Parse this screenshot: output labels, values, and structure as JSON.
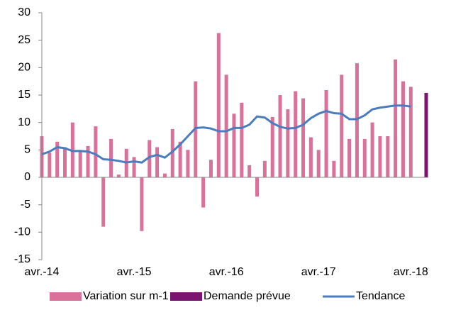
{
  "chart_data": {
    "type": "bar",
    "categories": [
      "avr.-14",
      null,
      null,
      null,
      null,
      null,
      null,
      null,
      null,
      null,
      null,
      null,
      "avr.-15",
      null,
      null,
      null,
      null,
      null,
      null,
      null,
      null,
      null,
      null,
      null,
      "avr.-16",
      null,
      null,
      null,
      null,
      null,
      null,
      null,
      null,
      null,
      null,
      null,
      "avr.-17",
      null,
      null,
      null,
      null,
      null,
      null,
      null,
      null,
      null,
      null,
      null,
      "avr.-18",
      null,
      null
    ],
    "series": [
      {
        "name": "Variation sur m-1",
        "type": "bar",
        "color": "#d9719a",
        "values": [
          7.5,
          4.5,
          6.5,
          5.5,
          10,
          5,
          5.7,
          9.3,
          -9,
          7,
          0.5,
          5.2,
          3.7,
          -9.8,
          6.8,
          5.5,
          0.7,
          8.8,
          6.5,
          5,
          17.5,
          -5.5,
          3.2,
          26.3,
          18.7,
          11.6,
          13.6,
          2.2,
          -3.5,
          3,
          11,
          15,
          12.4,
          15.7,
          14.4,
          7.3,
          5,
          15.9,
          3,
          18.7,
          7,
          20.8,
          7,
          10,
          7.5,
          7.5,
          21.5,
          17.5,
          16.5,
          null,
          null
        ]
      },
      {
        "name": "Demande prévue",
        "type": "bar",
        "color": "#7b1470",
        "values": [
          null,
          null,
          null,
          null,
          null,
          null,
          null,
          null,
          null,
          null,
          null,
          null,
          null,
          null,
          null,
          null,
          null,
          null,
          null,
          null,
          null,
          null,
          null,
          null,
          null,
          null,
          null,
          null,
          null,
          null,
          null,
          null,
          null,
          null,
          null,
          null,
          null,
          null,
          null,
          null,
          null,
          null,
          null,
          null,
          null,
          null,
          null,
          null,
          null,
          null,
          15.4
        ]
      },
      {
        "name": "Tendance",
        "type": "line",
        "color": "#4a7dc0",
        "values": [
          4.2,
          4.7,
          5.5,
          5.3,
          4.8,
          4.8,
          4.7,
          4.2,
          3.3,
          3.2,
          3,
          2.7,
          2.9,
          2.7,
          3.7,
          4.1,
          3.6,
          4.7,
          6,
          7.5,
          9,
          9.1,
          8.9,
          8.4,
          8.4,
          9,
          9,
          9.6,
          11.1,
          10.9,
          9.9,
          9.2,
          8.9,
          9,
          9.6,
          10.8,
          11.6,
          12.1,
          11.7,
          11.6,
          10.6,
          10.6,
          11.3,
          12.4,
          12.7,
          12.9,
          13.1,
          13.1,
          12.9,
          null,
          null
        ]
      }
    ],
    "ylim": [
      -15,
      30
    ],
    "yticks": [
      -15,
      -10,
      -5,
      0,
      5,
      10,
      15,
      20,
      25,
      30
    ],
    "grid": false
  }
}
